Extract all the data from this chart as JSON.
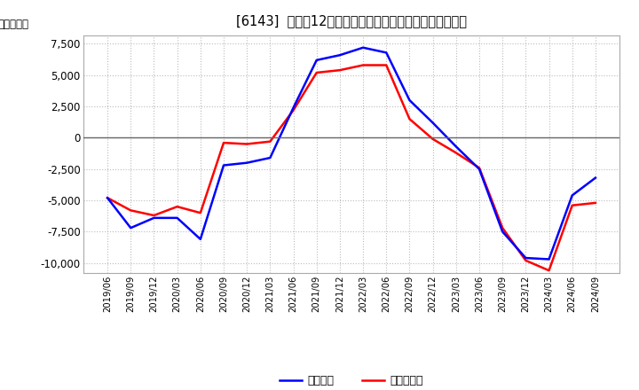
{
  "title": "[6143]  利益だ12か月移動合計の対前年同期増減額の推移",
  "ylabel": "（百万円）",
  "x_labels": [
    "2019/06",
    "2019/09",
    "2019/12",
    "2020/03",
    "2020/06",
    "2020/09",
    "2020/12",
    "2021/03",
    "2021/06",
    "2021/09",
    "2021/12",
    "2022/03",
    "2022/06",
    "2022/09",
    "2022/12",
    "2023/03",
    "2023/06",
    "2023/09",
    "2023/12",
    "2024/03",
    "2024/06",
    "2024/09"
  ],
  "keijo_rieki": [
    -4800,
    -7200,
    -6400,
    -6400,
    -8100,
    -2200,
    -2000,
    -1600,
    2400,
    6200,
    6600,
    7200,
    6800,
    3000,
    1200,
    -700,
    -2500,
    -7500,
    -9600,
    -9700,
    -4600,
    -3200
  ],
  "tokki_rieki": [
    -4800,
    -5800,
    -6200,
    -5500,
    -6000,
    -400,
    -500,
    -300,
    2200,
    5200,
    5400,
    5800,
    5800,
    1500,
    -100,
    -1200,
    -2400,
    -7200,
    -9800,
    -10600,
    -5400,
    -5200
  ],
  "ylim": [
    -10800,
    8200
  ],
  "yticks": [
    -10000,
    -7500,
    -5000,
    -2500,
    0,
    2500,
    5000,
    7500
  ],
  "line_color_keijo": "#0000ff",
  "line_color_tokki": "#ff0000",
  "bg_color": "#ffffff",
  "plot_bg_color": "#ffffff",
  "grid_color": "#bbbbbb",
  "zero_line_color": "#666666",
  "legend_keijo": "経常利益",
  "legend_tokki": "当期純利益"
}
